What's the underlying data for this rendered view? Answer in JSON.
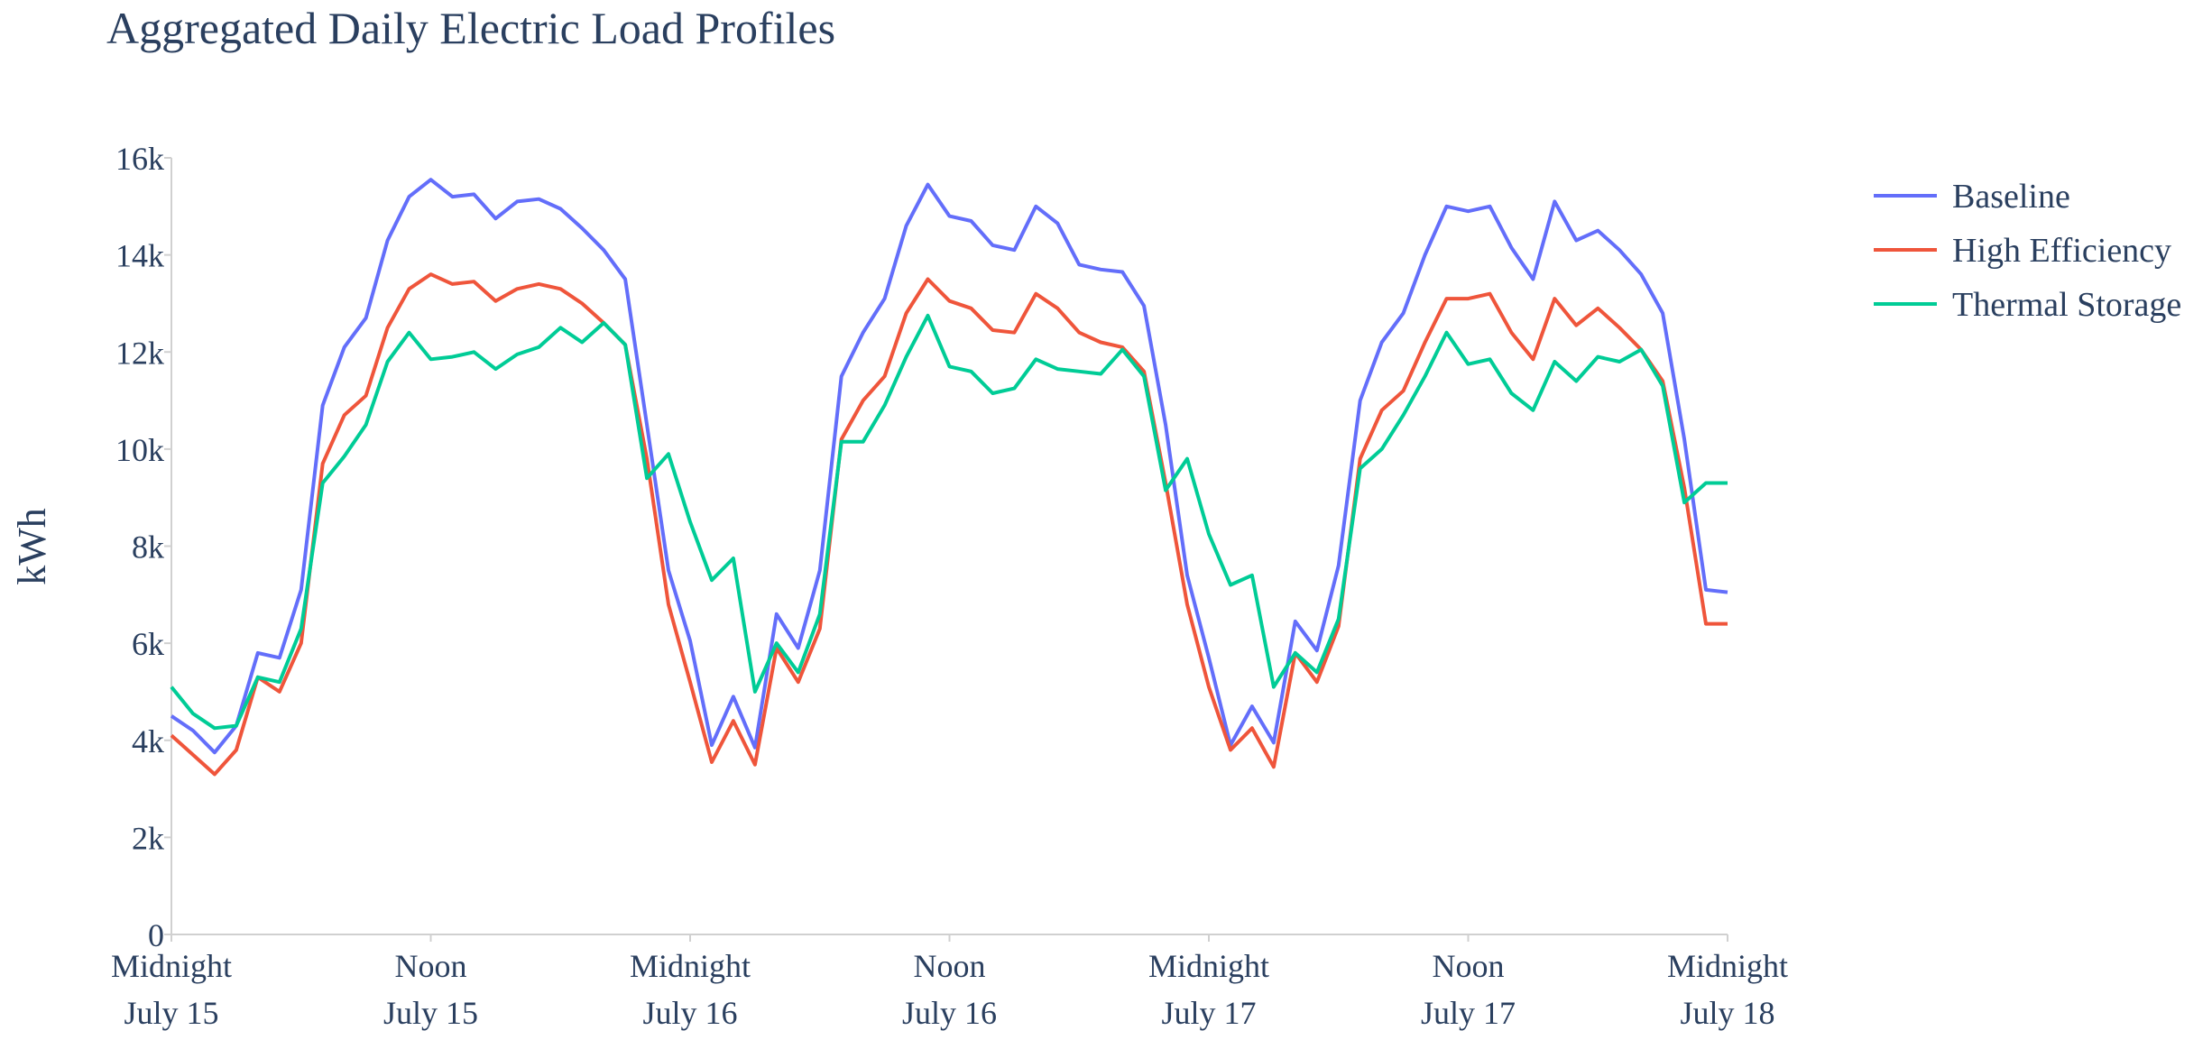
{
  "chart_data": {
    "type": "line",
    "title": "Aggregated Daily Electric Load Profiles",
    "xlabel": "",
    "ylabel": "kWh",
    "ylim": [
      0,
      16000
    ],
    "yticks": [
      0,
      2000,
      4000,
      6000,
      8000,
      10000,
      12000,
      14000,
      16000
    ],
    "ytick_labels": [
      "0",
      "2k",
      "4k",
      "6k",
      "8k",
      "10k",
      "12k",
      "14k",
      "16k"
    ],
    "xlim": [
      "2023-07-15 00:00",
      "2023-07-18 00:00"
    ],
    "xticks": [
      {
        "x": "2023-07-15 00:00",
        "line1": "Midnight",
        "line2": "July 15"
      },
      {
        "x": "2023-07-15 12:00",
        "line1": "Noon",
        "line2": "July 15"
      },
      {
        "x": "2023-07-16 00:00",
        "line1": "Midnight",
        "line2": "July 16"
      },
      {
        "x": "2023-07-16 12:00",
        "line1": "Noon",
        "line2": "July 16"
      },
      {
        "x": "2023-07-17 00:00",
        "line1": "Midnight",
        "line2": "July 17"
      },
      {
        "x": "2023-07-17 12:00",
        "line1": "Noon",
        "line2": "July 17"
      },
      {
        "x": "2023-07-18 00:00",
        "line1": "Midnight",
        "line2": "July 18"
      }
    ],
    "grid": false,
    "legend_position": "top-right",
    "x": [
      "2023-07-15 00:00",
      "2023-07-15 01:00",
      "2023-07-15 02:00",
      "2023-07-15 03:00",
      "2023-07-15 04:00",
      "2023-07-15 05:00",
      "2023-07-15 06:00",
      "2023-07-15 07:00",
      "2023-07-15 08:00",
      "2023-07-15 09:00",
      "2023-07-15 10:00",
      "2023-07-15 11:00",
      "2023-07-15 12:00",
      "2023-07-15 13:00",
      "2023-07-15 14:00",
      "2023-07-15 15:00",
      "2023-07-15 16:00",
      "2023-07-15 17:00",
      "2023-07-15 18:00",
      "2023-07-15 19:00",
      "2023-07-15 20:00",
      "2023-07-15 21:00",
      "2023-07-15 22:00",
      "2023-07-15 23:00",
      "2023-07-16 00:00",
      "2023-07-16 01:00",
      "2023-07-16 02:00",
      "2023-07-16 03:00",
      "2023-07-16 04:00",
      "2023-07-16 05:00",
      "2023-07-16 06:00",
      "2023-07-16 07:00",
      "2023-07-16 08:00",
      "2023-07-16 09:00",
      "2023-07-16 10:00",
      "2023-07-16 11:00",
      "2023-07-16 12:00",
      "2023-07-16 13:00",
      "2023-07-16 14:00",
      "2023-07-16 15:00",
      "2023-07-16 16:00",
      "2023-07-16 17:00",
      "2023-07-16 18:00",
      "2023-07-16 19:00",
      "2023-07-16 20:00",
      "2023-07-16 21:00",
      "2023-07-16 22:00",
      "2023-07-16 23:00",
      "2023-07-17 00:00",
      "2023-07-17 01:00",
      "2023-07-17 02:00",
      "2023-07-17 03:00",
      "2023-07-17 04:00",
      "2023-07-17 05:00",
      "2023-07-17 06:00",
      "2023-07-17 07:00",
      "2023-07-17 08:00",
      "2023-07-17 09:00",
      "2023-07-17 10:00",
      "2023-07-17 11:00",
      "2023-07-17 12:00",
      "2023-07-17 13:00",
      "2023-07-17 14:00",
      "2023-07-17 15:00",
      "2023-07-17 16:00",
      "2023-07-17 17:00",
      "2023-07-17 18:00",
      "2023-07-17 19:00",
      "2023-07-17 20:00",
      "2023-07-17 21:00",
      "2023-07-17 22:00",
      "2023-07-17 23:00",
      "2023-07-18 00:00"
    ],
    "series": [
      {
        "name": "Baseline",
        "color": "#636efa",
        "values": [
          4500,
          4200,
          3750,
          4300,
          5800,
          5700,
          7100,
          10900,
          12100,
          12700,
          14300,
          15200,
          15550,
          15200,
          15250,
          14750,
          15100,
          15150,
          14950,
          14550,
          14100,
          13500,
          10500,
          7500,
          6050,
          3900,
          4900,
          3850,
          6600,
          5900,
          7500,
          11500,
          12400,
          13100,
          14600,
          15450,
          14800,
          14700,
          14200,
          14100,
          15000,
          14650,
          13800,
          13700,
          13650,
          12950,
          10500,
          7400,
          5700,
          3900,
          4700,
          3950,
          6450,
          5850,
          7600,
          11000,
          12200,
          12800,
          14000,
          15000,
          14900,
          15000,
          14150,
          13500,
          15100,
          14300,
          14500,
          14100,
          13600,
          12800,
          10200,
          7100,
          7050
        ]
      },
      {
        "name": "High Efficiency",
        "color": "#ef553b",
        "values": [
          4100,
          3700,
          3300,
          3800,
          5300,
          5000,
          6000,
          9700,
          10700,
          11100,
          12500,
          13300,
          13600,
          13400,
          13450,
          13050,
          13300,
          13400,
          13300,
          13000,
          12600,
          12150,
          9800,
          6800,
          5200,
          3550,
          4400,
          3500,
          5900,
          5200,
          6300,
          10200,
          11000,
          11500,
          12800,
          13500,
          13050,
          12900,
          12450,
          12400,
          13200,
          12900,
          12400,
          12200,
          12100,
          11600,
          9300,
          6800,
          5100,
          3800,
          4250,
          3450,
          5800,
          5200,
          6350,
          9800,
          10800,
          11200,
          12200,
          13100,
          13100,
          13200,
          12400,
          11850,
          13100,
          12550,
          12900,
          12500,
          12050,
          11400,
          9200,
          6400,
          6400
        ]
      },
      {
        "name": "Thermal Storage",
        "color": "#00cc96",
        "values": [
          5100,
          4550,
          4250,
          4300,
          5300,
          5200,
          6300,
          9300,
          9850,
          10500,
          11800,
          12400,
          11850,
          11900,
          12000,
          11650,
          11950,
          12100,
          12500,
          12200,
          12600,
          12150,
          9400,
          9900,
          8500,
          7300,
          7750,
          5000,
          6000,
          5400,
          6600,
          10150,
          10150,
          10900,
          11900,
          12750,
          11700,
          11600,
          11150,
          11250,
          11850,
          11650,
          11600,
          11550,
          12050,
          11500,
          9150,
          9800,
          8250,
          7200,
          7400,
          5100,
          5800,
          5400,
          6500,
          9600,
          10000,
          10700,
          11500,
          12400,
          11750,
          11850,
          11150,
          10800,
          11800,
          11400,
          11900,
          11800,
          12050,
          11300,
          8900,
          9300,
          9300
        ]
      }
    ]
  }
}
